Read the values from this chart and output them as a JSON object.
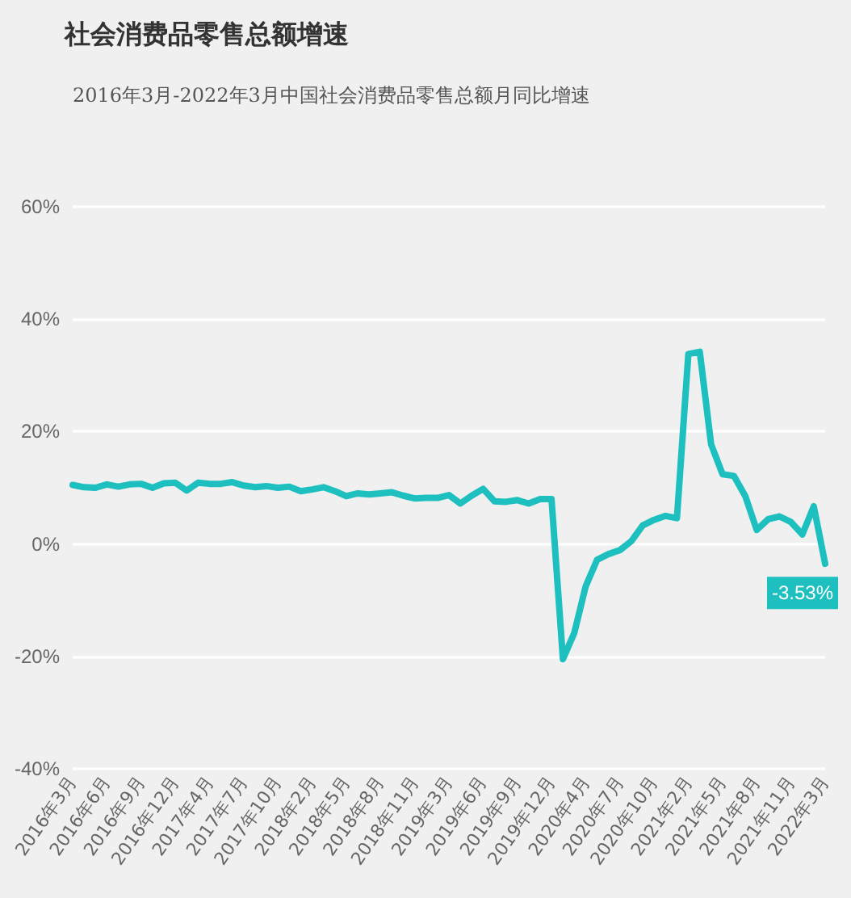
{
  "chart_data": {
    "type": "line",
    "title": "社会消费品零售总额增速",
    "subtitle": "2016年3月-2022年3月中国社会消费品零售总额月同比增速",
    "categories": [
      "2016年3月",
      null,
      null,
      "2016年6月",
      null,
      null,
      "2016年9月",
      null,
      null,
      "2016年12月",
      null,
      null,
      "2017年4月",
      null,
      null,
      "2017年7月",
      null,
      null,
      "2017年10月",
      null,
      null,
      "2018年2月",
      null,
      null,
      "2018年5月",
      null,
      null,
      "2018年8月",
      null,
      null,
      "2018年11月",
      null,
      null,
      "2019年3月",
      null,
      null,
      "2019年6月",
      null,
      null,
      "2019年9月",
      null,
      null,
      "2019年12月",
      null,
      null,
      "2020年4月",
      null,
      null,
      "2020年7月",
      null,
      null,
      "2020年10月",
      null,
      null,
      "2021年2月",
      null,
      null,
      "2021年5月",
      null,
      null,
      "2021年8月",
      null,
      null,
      "2021年11月",
      null,
      null,
      "2022年3月"
    ],
    "series": [
      {
        "color": "#1dbfbf",
        "values": [
          10.5,
          10.1,
          10.0,
          10.6,
          10.2,
          10.6,
          10.7,
          10.0,
          10.8,
          10.9,
          9.5,
          10.9,
          10.7,
          10.7,
          11.0,
          10.4,
          10.1,
          10.3,
          10.0,
          10.2,
          9.4,
          9.7,
          10.1,
          9.4,
          8.5,
          9.0,
          8.8,
          9.0,
          9.2,
          8.6,
          8.1,
          8.2,
          8.2,
          8.7,
          7.2,
          8.6,
          9.8,
          7.6,
          7.5,
          7.8,
          7.2,
          8.0,
          8.0,
          -20.5,
          -15.8,
          -7.5,
          -2.8,
          -1.8,
          -1.1,
          0.5,
          3.3,
          4.3,
          5.0,
          4.6,
          33.8,
          34.2,
          17.7,
          12.4,
          12.1,
          8.5,
          2.5,
          4.4,
          4.9,
          3.9,
          1.7,
          6.7,
          -3.53
        ],
        "value_labels": [
          null,
          null,
          null,
          null,
          null,
          null,
          null,
          null,
          null,
          null,
          null,
          null,
          null,
          null,
          null,
          null,
          null,
          null,
          null,
          null,
          null,
          null,
          null,
          null,
          null,
          null,
          null,
          null,
          null,
          null,
          null,
          null,
          null,
          null,
          null,
          null,
          null,
          null,
          null,
          null,
          null,
          null,
          null,
          null,
          null,
          null,
          null,
          null,
          null,
          null,
          null,
          null,
          null,
          null,
          null,
          null,
          null,
          null,
          null,
          null,
          null,
          null,
          null,
          null,
          null,
          null,
          "-3.53%"
        ]
      }
    ],
    "ylim": [
      -40,
      60
    ],
    "yticks": [
      {
        "value": -40,
        "label": "-40%"
      },
      {
        "value": -20,
        "label": "-20%"
      },
      {
        "value": 0,
        "label": "0%"
      },
      {
        "value": 20,
        "label": "20%"
      },
      {
        "value": 40,
        "label": "40%"
      },
      {
        "value": 60,
        "label": "60%"
      }
    ],
    "grid": "y",
    "marker": "none",
    "line_style": "solid"
  }
}
